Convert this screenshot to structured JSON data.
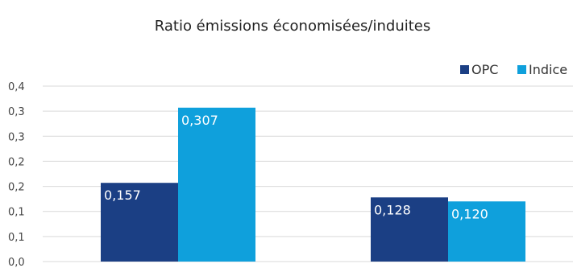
{
  "chart_data": {
    "type": "bar",
    "title": "Ratio émissions économisées/induites",
    "categories": [
      "",
      ""
    ],
    "series": [
      {
        "name": "OPC",
        "values": [
          0.157,
          0.128
        ],
        "labels": [
          "0,157",
          "0,128"
        ],
        "color": "#1b3f84"
      },
      {
        "name": "Indice",
        "values": [
          0.307,
          0.12
        ],
        "labels": [
          "0,307",
          "0,120"
        ],
        "color": "#0fa0dc"
      }
    ],
    "y_ticks": [
      "0,0",
      "0,1",
      "0,1",
      "0,2",
      "0,2",
      "0,3",
      "0,3",
      "0,4"
    ],
    "ylim": [
      0,
      0.35
    ],
    "grid": true,
    "legend_position": "top-right"
  }
}
